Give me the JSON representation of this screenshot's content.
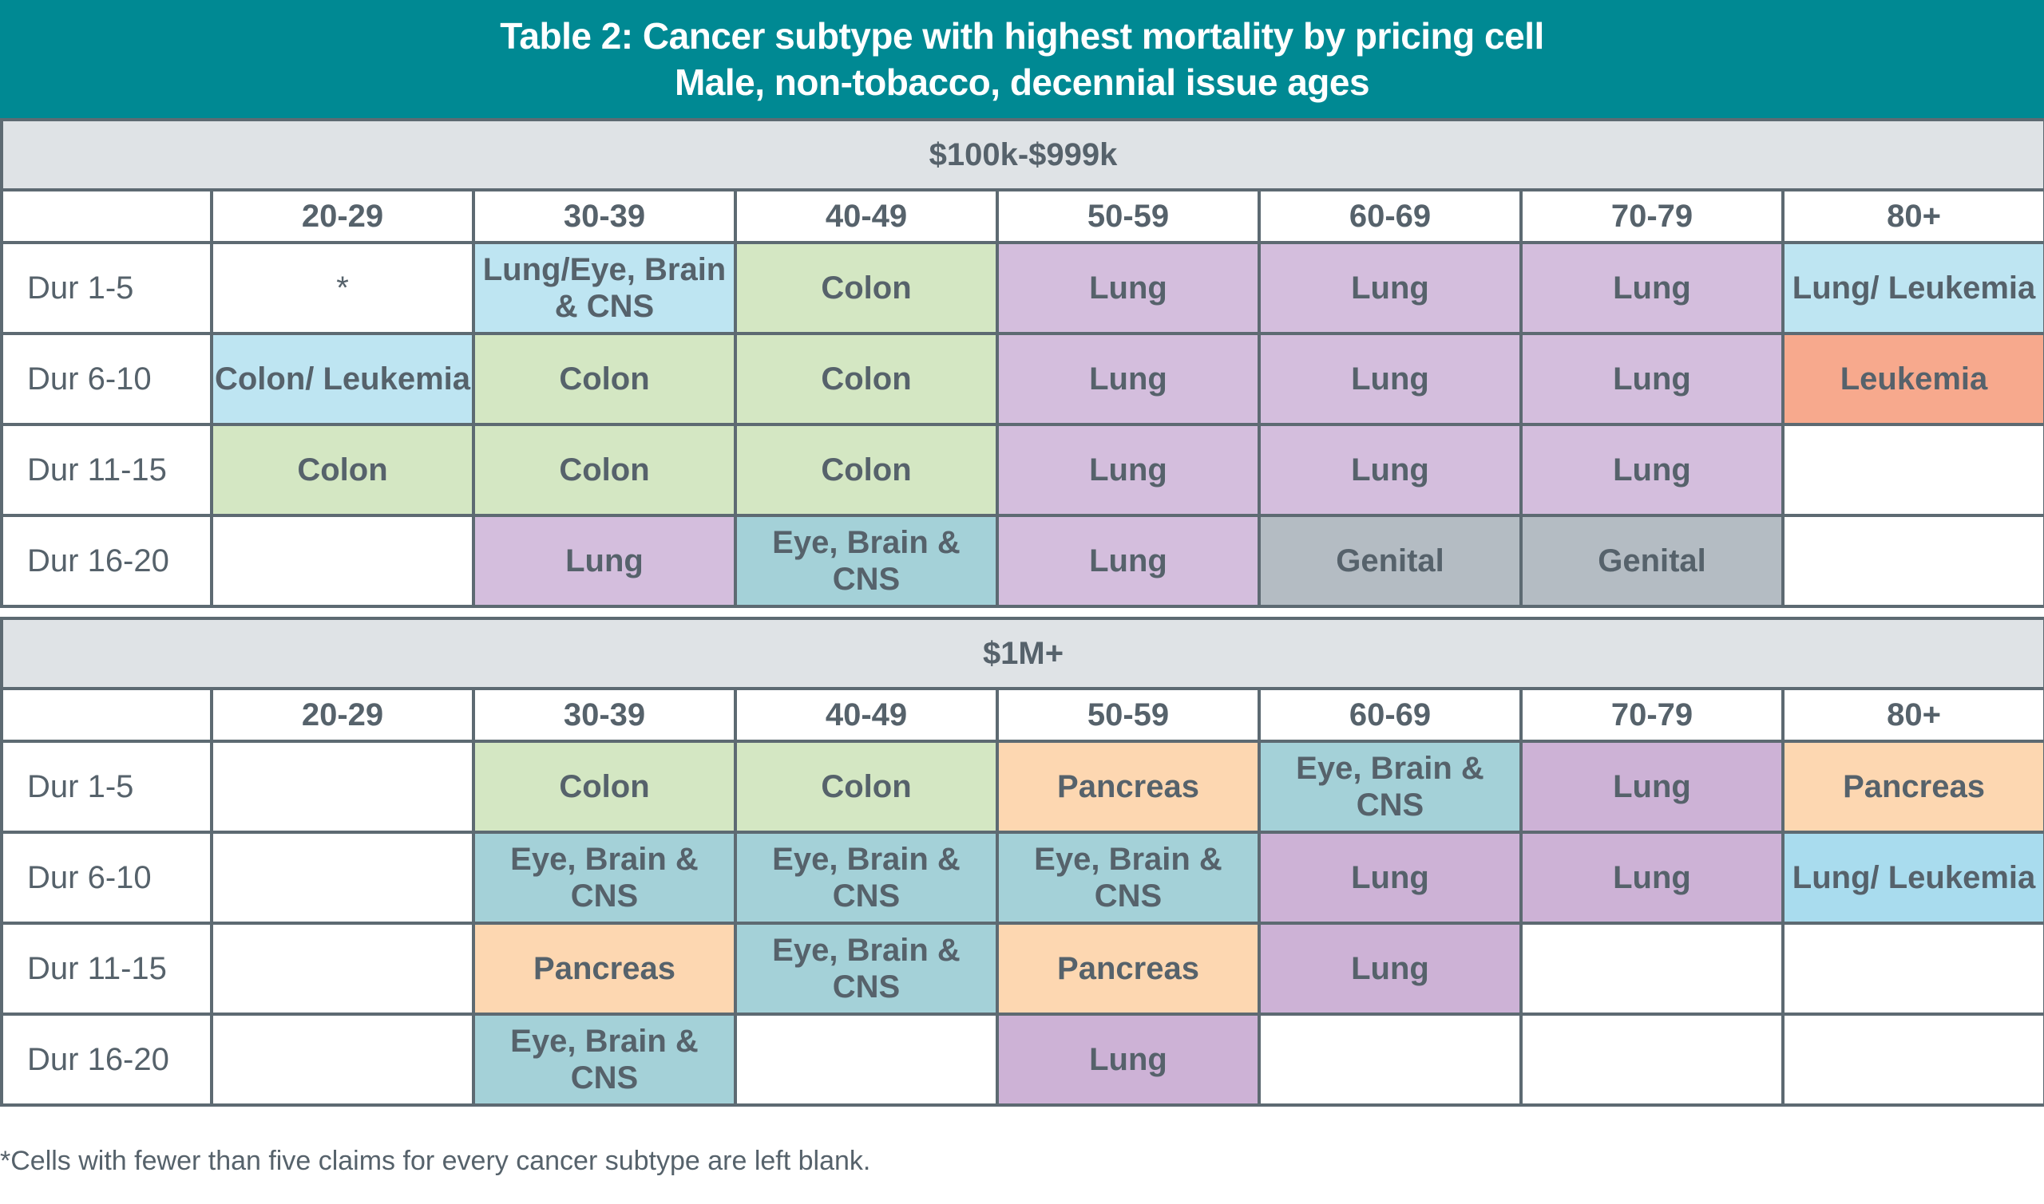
{
  "title": {
    "line1": "Table 2: Cancer subtype with highest mortality by pricing cell",
    "line2": "Male, non-tobacco, decennial issue ages"
  },
  "colors": {
    "title_bg": "#008993",
    "section_bg": "#dfe3e6",
    "border": "#5d6a72",
    "text": "#56626b"
  },
  "legend_colors": {
    "Colon": "#d4e7c3",
    "Lung": "#d4bedd",
    "Lung (bottom table)": "#cdb2d6",
    "Eye, Brain & CNS": "#a4d1d8",
    "Lung/Eye, Brain & CNS": "#bee5f2",
    "Colon/Leukemia": "#bee5f2",
    "Lung/Leukemia": "#bee5f2",
    "Leukemia": "#f7a98d",
    "Genital": "#b4bcc3",
    "Pancreas": "#fdd7b1",
    "blank": "#ffffff"
  },
  "sections": [
    {
      "label": "$100k-$999k",
      "columns": [
        "",
        "20-29",
        "30-39",
        "40-49",
        "50-59",
        "60-69",
        "70-79",
        "80+"
      ],
      "rows": [
        {
          "label": "Dur 1-5",
          "cells": [
            "*",
            "Lung/Eye, Brain & CNS",
            "Colon",
            "Lung",
            "Lung",
            "Lung",
            "Lung/ Leukemia"
          ],
          "colors": [
            "#ffffff",
            "#bee5f2",
            "#d4e7c3",
            "#d4bedd",
            "#d4bedd",
            "#d4bedd",
            "#bee5f2"
          ]
        },
        {
          "label": "Dur 6-10",
          "cells": [
            "Colon/ Leukemia",
            "Colon",
            "Colon",
            "Lung",
            "Lung",
            "Lung",
            "Leukemia"
          ],
          "colors": [
            "#bee5f2",
            "#d4e7c3",
            "#d4e7c3",
            "#d4bedd",
            "#d4bedd",
            "#d4bedd",
            "#f7a98d"
          ]
        },
        {
          "label": "Dur 11-15",
          "cells": [
            "Colon",
            "Colon",
            "Colon",
            "Lung",
            "Lung",
            "Lung",
            ""
          ],
          "colors": [
            "#d4e7c3",
            "#d4e7c3",
            "#d4e7c3",
            "#d4bedd",
            "#d4bedd",
            "#d4bedd",
            "#ffffff"
          ]
        },
        {
          "label": "Dur 16-20",
          "cells": [
            "",
            "Lung",
            "Eye, Brain & CNS",
            "Lung",
            "Genital",
            "Genital",
            ""
          ],
          "colors": [
            "#ffffff",
            "#d4bedd",
            "#a4d1d8",
            "#d4bedd",
            "#b4bcc3",
            "#b4bcc3",
            "#ffffff"
          ]
        }
      ]
    },
    {
      "label": "$1M+",
      "columns": [
        "",
        "20-29",
        "30-39",
        "40-49",
        "50-59",
        "60-69",
        "70-79",
        "80+"
      ],
      "rows": [
        {
          "label": "Dur 1-5",
          "cells": [
            "",
            "Colon",
            "Colon",
            "Pancreas",
            "Eye, Brain & CNS",
            "Lung",
            "Pancreas"
          ],
          "colors": [
            "#ffffff",
            "#d4e7c3",
            "#d4e7c3",
            "#fdd7b1",
            "#a4d1d8",
            "#cdb2d6",
            "#fdd7b1"
          ]
        },
        {
          "label": "Dur 6-10",
          "cells": [
            "",
            "Eye, Brain & CNS",
            "Eye, Brain & CNS",
            "Eye, Brain & CNS",
            "Lung",
            "Lung",
            "Lung/ Leukemia"
          ],
          "colors": [
            "#ffffff",
            "#a4d1d8",
            "#a4d1d8",
            "#a4d1d8",
            "#cdb2d6",
            "#cdb2d6",
            "#a9dcee"
          ]
        },
        {
          "label": "Dur 11-15",
          "cells": [
            "",
            "Pancreas",
            "Eye, Brain & CNS",
            "Pancreas",
            "Lung",
            "",
            ""
          ],
          "colors": [
            "#ffffff",
            "#fdd7b1",
            "#a4d1d8",
            "#fdd7b1",
            "#cdb2d6",
            "#ffffff",
            "#ffffff"
          ]
        },
        {
          "label": "Dur 16-20",
          "cells": [
            "",
            "Eye, Brain & CNS",
            "",
            "Lung",
            "",
            "",
            ""
          ],
          "colors": [
            "#ffffff",
            "#a4d1d8",
            "#ffffff",
            "#cdb2d6",
            "#ffffff",
            "#ffffff",
            "#ffffff"
          ]
        }
      ]
    }
  ],
  "footnote": "*Cells with fewer than five claims for every cancer subtype are left blank."
}
